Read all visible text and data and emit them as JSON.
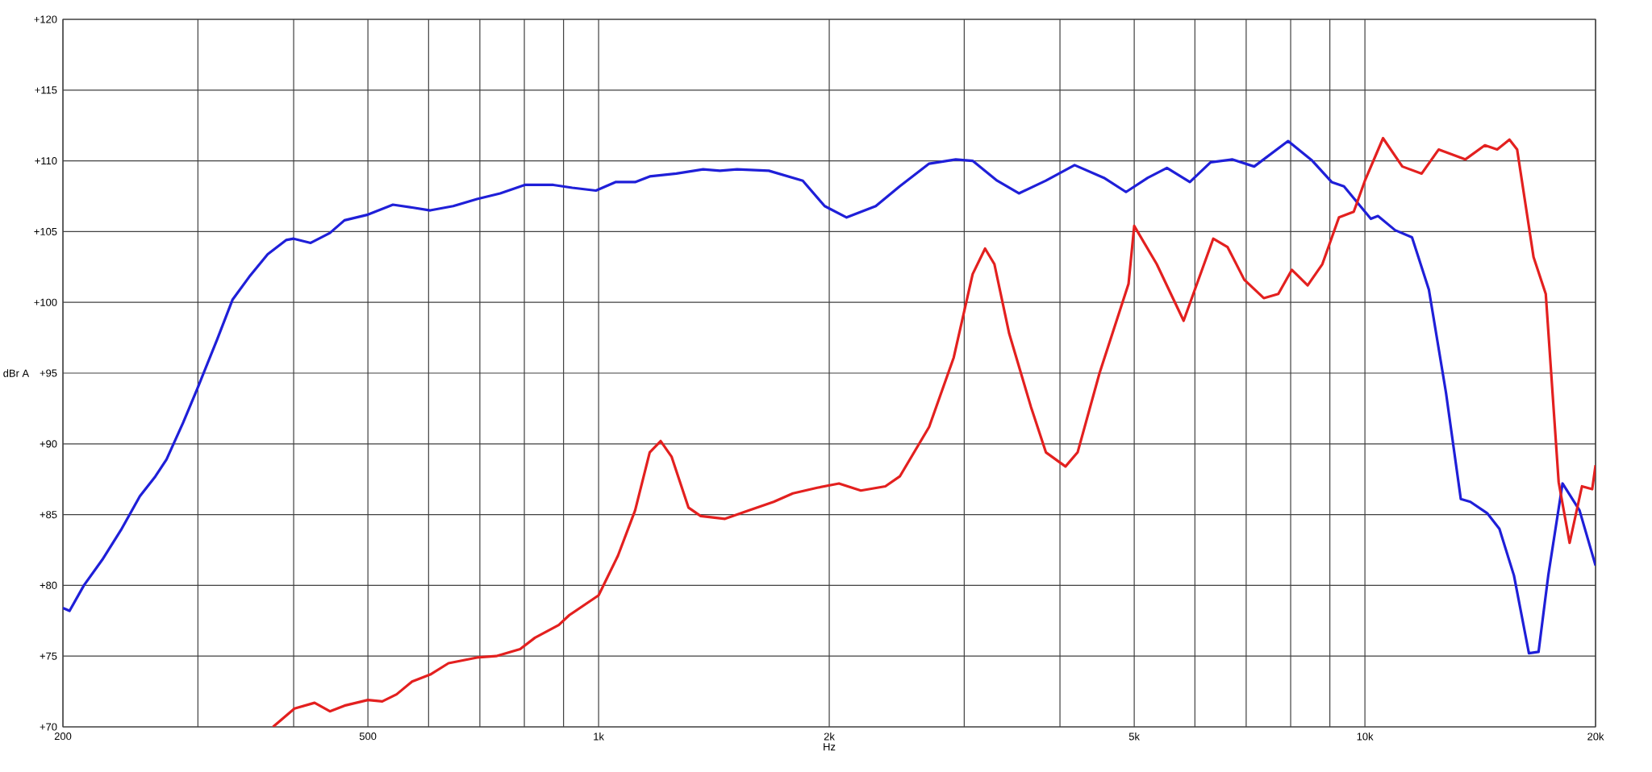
{
  "chart_data": {
    "type": "line",
    "xlabel": "Hz",
    "ylabel": "dBr A",
    "log": "x",
    "grid": true,
    "xlim": [
      200,
      20000
    ],
    "ylim": [
      70,
      120
    ],
    "xticks": [
      200,
      {
        "value": 300,
        "label": null
      },
      {
        "value": 400,
        "label": null
      },
      500,
      {
        "value": 600,
        "label": null
      },
      {
        "value": 700,
        "label": null
      },
      {
        "value": 800,
        "label": null
      },
      {
        "value": 900,
        "label": null
      },
      {
        "value": 1000,
        "label": "1k"
      },
      {
        "value": 2000,
        "label": "2k"
      },
      {
        "value": 3000,
        "label": null
      },
      {
        "value": 4000,
        "label": null
      },
      {
        "value": 5000,
        "label": "5k"
      },
      {
        "value": 6000,
        "label": null
      },
      {
        "value": 7000,
        "label": null
      },
      {
        "value": 8000,
        "label": null
      },
      {
        "value": 9000,
        "label": null
      },
      {
        "value": 10000,
        "label": "10k"
      },
      {
        "value": 20000,
        "label": "20k"
      }
    ],
    "yticks": [
      {
        "value": 70,
        "label": "+70"
      },
      {
        "value": 75,
        "label": "+75"
      },
      {
        "value": 80,
        "label": "+80"
      },
      {
        "value": 85,
        "label": "+85"
      },
      {
        "value": 90,
        "label": "+90"
      },
      {
        "value": 95,
        "label": "+95"
      },
      {
        "value": 100,
        "label": "+100"
      },
      {
        "value": 105,
        "label": "+105"
      },
      {
        "value": 110,
        "label": "+110"
      },
      {
        "value": 115,
        "label": "+115"
      },
      {
        "value": 120,
        "label": "+120"
      }
    ],
    "series": [
      {
        "color": "#1f1fd8",
        "x": [
          200,
          204,
          213,
          225,
          238,
          252,
          264,
          273,
          287,
          300,
          318,
          333,
          350,
          370,
          391,
          400,
          421,
          446,
          466,
          500,
          539,
          571,
          603,
          646,
          694,
          744,
          801,
          873,
          924,
          992,
          1052,
          1116,
          1166,
          1263,
          1369,
          1440,
          1516,
          1668,
          1847,
          1973,
          2107,
          2300,
          2471,
          2700,
          2925,
          3077,
          3312,
          3536,
          3835,
          4180,
          4565,
          4878,
          5208,
          5516,
          5910,
          6290,
          6710,
          7170,
          7940,
          8540,
          9050,
          9390,
          10180,
          10400,
          10950,
          11520,
          12120,
          12760,
          13340,
          13730,
          14440,
          14980,
          15650,
          16370,
          16850,
          17350,
          18110,
          19060,
          20000
        ],
        "values": [
          78.4,
          78.2,
          80,
          81.8,
          83.9,
          86.3,
          87.7,
          88.9,
          91.5,
          94,
          97.4,
          100.2,
          101.8,
          103.4,
          104.4,
          104.5,
          104.2,
          104.9,
          105.8,
          106.2,
          106.9,
          106.7,
          106.5,
          106.8,
          107.3,
          107.7,
          108.3,
          108.3,
          108.1,
          107.9,
          108.5,
          108.5,
          108.9,
          109.1,
          109.4,
          109.3,
          109.4,
          109.3,
          108.6,
          106.8,
          106,
          106.8,
          108.2,
          109.8,
          110.1,
          110,
          108.6,
          107.7,
          108.6,
          109.7,
          108.8,
          107.8,
          108.8,
          109.5,
          108.5,
          109.9,
          110.1,
          109.6,
          111.4,
          110,
          108.5,
          108.2,
          105.9,
          106.1,
          105.1,
          104.6,
          100.9,
          93.6,
          86.1,
          85.9,
          85.1,
          84,
          80.7,
          75.2,
          75.3,
          80.7,
          87.2,
          85.3,
          81.4
        ]
      },
      {
        "color": "#e3201f",
        "x": [
          376,
          401,
          426,
          446,
          466,
          500,
          522,
          545,
          571,
          603,
          637,
          694,
          735,
          790,
          826,
          887,
          916,
          1000,
          1060,
          1116,
          1166,
          1205,
          1245,
          1310,
          1359,
          1462,
          1572,
          1692,
          1793,
          1929,
          2059,
          2199,
          2367,
          2472,
          2700,
          2907,
          3077,
          3194,
          3285,
          3434,
          3667,
          3835,
          4067,
          4218,
          4505,
          4915,
          5000,
          5350,
          5800,
          6340,
          6620,
          6960,
          7380,
          7710,
          8030,
          8420,
          8800,
          9250,
          9670,
          10000,
          10560,
          11190,
          11860,
          12480,
          13520,
          14340,
          14880,
          15440,
          15800,
          16600,
          17220,
          17900,
          18500,
          19200,
          19800,
          20000
        ],
        "values": [
          70,
          71.3,
          71.7,
          71.1,
          71.5,
          71.9,
          71.8,
          72.3,
          73.2,
          73.7,
          74.5,
          74.9,
          75,
          75.5,
          76.3,
          77.2,
          77.9,
          79.3,
          82.1,
          85.3,
          89.4,
          90.2,
          89.1,
          85.5,
          84.9,
          84.7,
          85.3,
          85.9,
          86.5,
          86.9,
          87.2,
          86.7,
          87,
          87.7,
          91.2,
          96.1,
          102,
          103.8,
          102.7,
          97.8,
          92.6,
          89.4,
          88.4,
          89.4,
          95,
          101.3,
          105.4,
          102.7,
          98.7,
          104.5,
          103.9,
          101.6,
          100.3,
          100.6,
          102.3,
          101.2,
          102.7,
          106,
          106.4,
          108.6,
          111.6,
          109.6,
          109.1,
          110.8,
          110.1,
          111.1,
          110.8,
          111.5,
          110.8,
          103.2,
          100.6,
          87.3,
          83,
          87,
          86.8,
          88.5
        ]
      }
    ]
  }
}
